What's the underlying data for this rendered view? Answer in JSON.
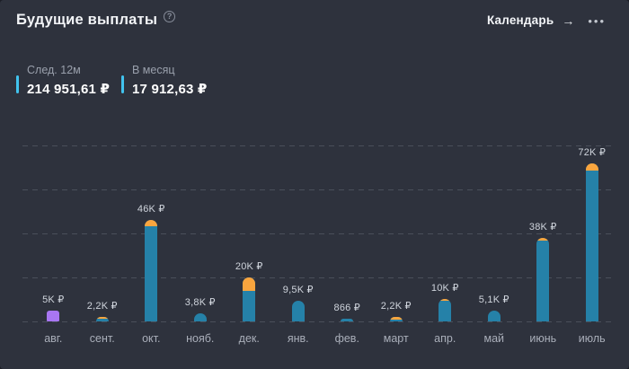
{
  "header": {
    "title": "Будущие выплаты",
    "help_icon": "?",
    "calendar_label": "Календарь",
    "calendar_arrow": "→",
    "menu_dots": "•••"
  },
  "stats": [
    {
      "label": "След. 12м",
      "value": "214 951,61 ₽"
    },
    {
      "label": "В месяц",
      "value": "17 912,63 ₽"
    }
  ],
  "colors": {
    "background": "#2e323d",
    "bar_teal": "#2581a8",
    "bar_cap_orange": "#f9a53e",
    "bar_purple": "#a876f2",
    "accent_cyan": "#41c3ee",
    "gridline": "#4a4f5a",
    "text_primary": "#f2f4f7",
    "text_secondary": "#9aa0ac",
    "text_value_label": "#cfd4dc",
    "text_month": "#a9aeb9"
  },
  "chart_data": {
    "type": "bar",
    "title": "Будущие выплаты",
    "categories": [
      "авг.",
      "сент.",
      "окт.",
      "нояб.",
      "дек.",
      "янв.",
      "фев.",
      "март",
      "апр.",
      "май",
      "июнь",
      "июль"
    ],
    "values": [
      5000,
      2200,
      46000,
      3800,
      20000,
      9500,
      866,
      2200,
      10000,
      5100,
      38000,
      72000
    ],
    "value_labels": [
      "5K ₽",
      "2,2K ₽",
      "46K ₽",
      "3,8K ₽",
      "20K ₽",
      "9,5K ₽",
      "866 ₽",
      "2,2K ₽",
      "10K ₽",
      "5,1K ₽",
      "38K ₽",
      "72K ₽"
    ],
    "bar_styles": [
      "purple",
      "teal",
      "teal",
      "teal",
      "teal",
      "teal",
      "teal",
      "teal",
      "teal",
      "teal",
      "teal",
      "teal"
    ],
    "cap_fractions": [
      0,
      0.4,
      0.06,
      0,
      0.3,
      0,
      0,
      0.55,
      0.08,
      0,
      0.03,
      0.045
    ],
    "xlabel": "",
    "ylabel": "",
    "ylim": [
      0,
      80000
    ],
    "gridlines_y": [
      0,
      20000,
      40000,
      60000,
      80000
    ],
    "grid_style": "dashed",
    "legend": "none"
  }
}
